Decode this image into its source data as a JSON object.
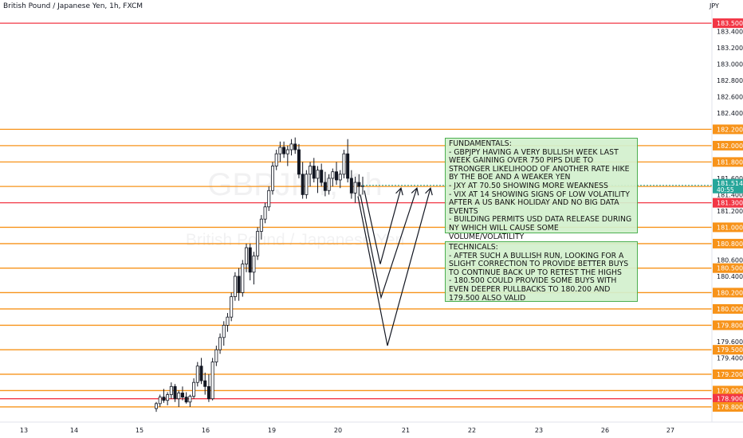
{
  "header": {
    "title": "British Pound / Japanese Yen, 1h, FXCM",
    "currency": "JPY"
  },
  "watermark": {
    "symbol": "GBPJPY, 1h",
    "name": "British Pound / Japanese Yen"
  },
  "price_axis": {
    "ticks": [
      "183.400",
      "183.200",
      "183.000",
      "182.800",
      "182.600",
      "182.400",
      "182.200",
      "182.000",
      "181.800",
      "181.600",
      "181.400",
      "181.200",
      "181.000",
      "180.800",
      "180.600",
      "180.400",
      "180.200",
      "180.000",
      "179.800",
      "179.600",
      "179.400",
      "179.200",
      "179.000",
      "178.800"
    ],
    "min": 178.78,
    "max": 183.55
  },
  "time_axis": {
    "labels": [
      "13",
      "14",
      "15",
      "16",
      "19",
      "20",
      "21",
      "22",
      "23",
      "26",
      "27"
    ]
  },
  "levels": [
    {
      "price": 183.5,
      "label": "183.500",
      "color": "#f23645"
    },
    {
      "price": 182.2,
      "label": "182.200",
      "color": "#f7931a"
    },
    {
      "price": 182.0,
      "label": "182.000",
      "color": "#f7931a"
    },
    {
      "price": 181.8,
      "label": "181.800",
      "color": "#f7931a"
    },
    {
      "price": 181.5,
      "label": "181.500",
      "color": "#f7931a"
    },
    {
      "price": 181.3,
      "label": "181.300",
      "color": "#f23645"
    },
    {
      "price": 181.0,
      "label": "181.000",
      "color": "#f7931a"
    },
    {
      "price": 180.8,
      "label": "180.800",
      "color": "#f7931a"
    },
    {
      "price": 180.5,
      "label": "180.500",
      "color": "#f7931a"
    },
    {
      "price": 180.2,
      "label": "180.200",
      "color": "#f7931a"
    },
    {
      "price": 180.0,
      "label": "180.000",
      "color": "#f7931a"
    },
    {
      "price": 179.8,
      "label": "179.800",
      "color": "#f7931a"
    },
    {
      "price": 179.5,
      "label": "179.500",
      "color": "#f7931a"
    },
    {
      "price": 179.2,
      "label": "179.200",
      "color": "#f7931a"
    },
    {
      "price": 179.0,
      "label": "179.000",
      "color": "#f7931a"
    },
    {
      "price": 178.9,
      "label": "178.900",
      "color": "#f23645"
    },
    {
      "price": 178.8,
      "label": "178.800",
      "color": "#f7931a"
    }
  ],
  "current_price": {
    "price": 181.514,
    "label": "181.514",
    "countdown": "40:55",
    "color": "#26a69a"
  },
  "scenario_paths": [
    {
      "name": "path-shallow",
      "points": [
        [
          457,
          181.45
        ],
        [
          477,
          180.55
        ],
        [
          503,
          181.48
        ]
      ]
    },
    {
      "name": "path-mid",
      "points": [
        [
          452,
          181.4
        ],
        [
          478,
          180.14
        ],
        [
          523,
          181.48
        ]
      ]
    },
    {
      "name": "path-deep",
      "points": [
        [
          449,
          181.38
        ],
        [
          486,
          179.55
        ],
        [
          540,
          181.48
        ]
      ]
    }
  ],
  "notes": {
    "fundamentals": {
      "title": "FUNDAMENTALS:",
      "lines": [
        "- GBPJPY HAVING A VERY BULLISH WEEK LAST WEEK GAINING OVER 750 PIPS DUE TO STRONGER LIKELIHOOD OF ANOTHER RATE HIKE BY THE BOE AND A WEAKER YEN",
        "- JXY AT 70.50 SHOWING MORE WEAKNESS",
        "- VIX AT 14 SHOWING SIGNS OF LOW VOLATILITY AFTER A US BANK HOLIDAY AND NO BIG DATA EVENTS",
        "- BUILDING PERMITS USD DATA RELEASE DURING NY WHICH WILL CAUSE SOME VOLUME/VOLATILITY"
      ]
    },
    "technicals": {
      "title": "TECHNICALS:",
      "lines": [
        "- AFTER SUCH A BULLISH RUN, LOOKING FOR A SLIGHT CORRECTION TO PROVIDE BETTER BUYS TO CONTINUE BACK UP TO RETEST THE HIGHS",
        "- 180.500 COULD PROVIDE SOME BUYS WITH EVEN DEEPER PULLBACKS TO 180.200 AND 179.500 ALSO VALID"
      ]
    }
  },
  "chart_data": {
    "type": "candlestick",
    "symbol": "GBPJPY",
    "timeframe": "1h",
    "ohlc": [
      [
        178.78,
        178.86,
        178.74,
        178.84
      ],
      [
        178.84,
        178.95,
        178.8,
        178.92
      ],
      [
        178.92,
        179.02,
        178.85,
        178.88
      ],
      [
        178.88,
        178.98,
        178.82,
        178.95
      ],
      [
        178.95,
        179.1,
        178.9,
        179.05
      ],
      [
        179.05,
        179.08,
        178.86,
        178.9
      ],
      [
        178.9,
        179.0,
        178.8,
        178.97
      ],
      [
        178.97,
        179.05,
        178.88,
        178.92
      ],
      [
        178.92,
        178.98,
        178.84,
        178.86
      ],
      [
        178.86,
        178.95,
        178.8,
        178.93
      ],
      [
        178.93,
        179.15,
        178.9,
        179.1
      ],
      [
        179.1,
        179.35,
        179.05,
        179.3
      ],
      [
        179.3,
        179.4,
        179.08,
        179.12
      ],
      [
        179.12,
        179.22,
        178.95,
        179.05
      ],
      [
        179.05,
        179.2,
        178.86,
        178.9
      ],
      [
        178.9,
        179.4,
        178.88,
        179.35
      ],
      [
        179.35,
        179.55,
        179.3,
        179.5
      ],
      [
        179.5,
        179.7,
        179.45,
        179.65
      ],
      [
        179.65,
        179.85,
        179.55,
        179.8
      ],
      [
        179.8,
        179.95,
        179.72,
        179.9
      ],
      [
        179.9,
        180.2,
        179.85,
        180.15
      ],
      [
        180.15,
        180.45,
        180.1,
        180.4
      ],
      [
        180.4,
        180.5,
        180.1,
        180.2
      ],
      [
        180.2,
        180.6,
        180.15,
        180.55
      ],
      [
        180.55,
        180.8,
        180.45,
        180.75
      ],
      [
        180.75,
        180.8,
        180.35,
        180.45
      ],
      [
        180.45,
        180.7,
        180.3,
        180.65
      ],
      [
        180.65,
        181.0,
        180.6,
        180.95
      ],
      [
        180.95,
        181.15,
        180.85,
        181.1
      ],
      [
        181.1,
        181.3,
        181.05,
        181.25
      ],
      [
        181.25,
        181.5,
        181.2,
        181.45
      ],
      [
        181.45,
        181.8,
        181.4,
        181.75
      ],
      [
        181.75,
        181.95,
        181.7,
        181.9
      ],
      [
        181.9,
        182.05,
        181.8,
        181.98
      ],
      [
        181.98,
        182.05,
        181.85,
        181.9
      ],
      [
        181.9,
        182.0,
        181.75,
        181.95
      ],
      [
        181.95,
        182.08,
        181.88,
        182.02
      ],
      [
        182.02,
        182.1,
        181.9,
        181.95
      ],
      [
        181.95,
        182.02,
        181.6,
        181.65
      ],
      [
        181.65,
        181.8,
        181.35,
        181.4
      ],
      [
        181.4,
        181.7,
        181.35,
        181.65
      ],
      [
        181.65,
        181.8,
        181.5,
        181.75
      ],
      [
        181.75,
        181.85,
        181.55,
        181.6
      ],
      [
        181.6,
        181.75,
        181.42,
        181.7
      ],
      [
        181.7,
        181.78,
        181.5,
        181.55
      ],
      [
        181.55,
        181.68,
        181.38,
        181.45
      ],
      [
        181.45,
        181.65,
        181.4,
        181.6
      ],
      [
        181.6,
        181.72,
        181.5,
        181.68
      ],
      [
        181.68,
        181.8,
        181.52,
        181.58
      ],
      [
        181.58,
        181.7,
        181.48,
        181.65
      ],
      [
        181.65,
        181.95,
        181.6,
        181.9
      ],
      [
        181.9,
        182.08,
        181.55,
        181.6
      ],
      [
        181.6,
        181.7,
        181.35,
        181.42
      ],
      [
        181.42,
        181.62,
        181.3,
        181.55
      ],
      [
        181.55,
        181.65,
        181.38,
        181.5
      ],
      [
        181.5,
        181.62,
        181.4,
        181.51
      ]
    ]
  }
}
